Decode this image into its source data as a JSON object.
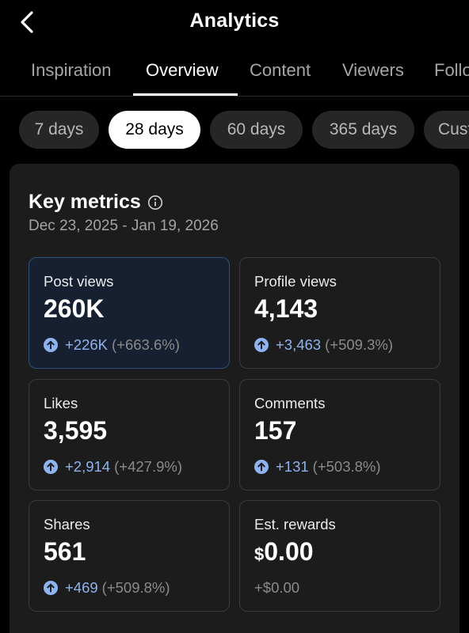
{
  "header": {
    "title": "Analytics",
    "back_icon": "chevron-left-icon"
  },
  "tabs": [
    {
      "label": "Inspiration",
      "active": false
    },
    {
      "label": "Overview",
      "active": true
    },
    {
      "label": "Content",
      "active": false
    },
    {
      "label": "Viewers",
      "active": false
    },
    {
      "label": "Followers",
      "active": false
    }
  ],
  "ranges": [
    {
      "label": "7 days",
      "active": false
    },
    {
      "label": "28 days",
      "active": true
    },
    {
      "label": "60 days",
      "active": false
    },
    {
      "label": "365 days",
      "active": false
    },
    {
      "label": "Custom",
      "active": false
    }
  ],
  "key_metrics": {
    "title": "Key metrics",
    "date_range": "Dec 23, 2025 - Jan 19, 2026",
    "items": [
      {
        "label": "Post views",
        "value": "260K",
        "delta": "+226K",
        "percent": "(+663.6%)",
        "selected": true
      },
      {
        "label": "Profile views",
        "value": "4,143",
        "delta": "+3,463",
        "percent": "(+509.3%)",
        "selected": false
      },
      {
        "label": "Likes",
        "value": "3,595",
        "delta": "+2,914",
        "percent": "(+427.9%)",
        "selected": false
      },
      {
        "label": "Comments",
        "value": "157",
        "delta": "+131",
        "percent": "(+503.8%)",
        "selected": false
      },
      {
        "label": "Shares",
        "value": "561",
        "delta": "+469",
        "percent": "(+509.8%)",
        "selected": false
      },
      {
        "label": "Est. rewards",
        "currency": "$",
        "value": "0.00",
        "change": "+$0.00",
        "selected": false
      }
    ]
  },
  "colors": {
    "accent": "#8fb3ef",
    "selected_border": "#2f4f7e",
    "selected_bg": "#172030",
    "card_bg": "#1c1c1c"
  }
}
